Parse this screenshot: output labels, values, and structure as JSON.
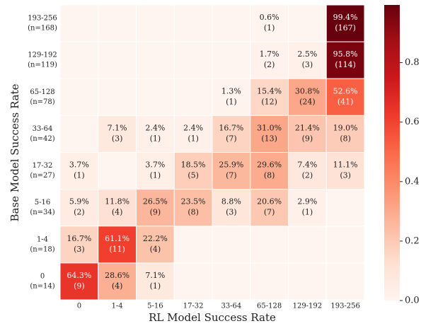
{
  "chart_data": {
    "type": "heatmap",
    "x_label": "RL Model Success Rate",
    "y_label": "Base Model Success Rate",
    "x_categories": [
      "0",
      "1-4",
      "5-16",
      "17-32",
      "33-64",
      "65-128",
      "129-192",
      "193-256"
    ],
    "y_categories": [
      "193-256",
      "129-192",
      "65-128",
      "33-64",
      "17-32",
      "5-16",
      "1-4",
      "0"
    ],
    "y_category_notes": [
      "(n=168)",
      "(n=119)",
      "(n=78)",
      "(n=42)",
      "(n=27)",
      "(n=34)",
      "(n=18)",
      "(n=14)"
    ],
    "values": [
      [
        0,
        0,
        0,
        0,
        0,
        0.006,
        0,
        0.994
      ],
      [
        0,
        0,
        0,
        0,
        0,
        0.017,
        0.025,
        0.958
      ],
      [
        0,
        0,
        0,
        0,
        0.013,
        0.154,
        0.308,
        0.526
      ],
      [
        0,
        0.071,
        0.024,
        0.024,
        0.167,
        0.31,
        0.214,
        0.19
      ],
      [
        0.037,
        0,
        0.037,
        0.185,
        0.259,
        0.296,
        0.074,
        0.111
      ],
      [
        0.059,
        0.118,
        0.265,
        0.235,
        0.088,
        0.206,
        0.029,
        0
      ],
      [
        0.167,
        0.611,
        0.222,
        0,
        0,
        0,
        0,
        0
      ],
      [
        0.643,
        0.286,
        0.071,
        0,
        0,
        0,
        0,
        0
      ]
    ],
    "value_labels": [
      [
        null,
        null,
        null,
        null,
        null,
        "0.6%",
        null,
        "99.4%"
      ],
      [
        null,
        null,
        null,
        null,
        null,
        "1.7%",
        "2.5%",
        "95.8%"
      ],
      [
        null,
        null,
        null,
        null,
        "1.3%",
        "15.4%",
        "30.8%",
        "52.6%"
      ],
      [
        null,
        "7.1%",
        "2.4%",
        "2.4%",
        "16.7%",
        "31.0%",
        "21.4%",
        "19.0%"
      ],
      [
        "3.7%",
        null,
        "3.7%",
        "18.5%",
        "25.9%",
        "29.6%",
        "7.4%",
        "11.1%"
      ],
      [
        "5.9%",
        "11.8%",
        "26.5%",
        "23.5%",
        "8.8%",
        "20.6%",
        "2.9%",
        null
      ],
      [
        "16.7%",
        "61.1%",
        "22.2%",
        null,
        null,
        null,
        null,
        null
      ],
      [
        "64.3%",
        "28.6%",
        "7.1%",
        null,
        null,
        null,
        null,
        null
      ]
    ],
    "counts": [
      [
        null,
        null,
        null,
        null,
        null,
        1,
        null,
        167
      ],
      [
        null,
        null,
        null,
        null,
        null,
        2,
        3,
        114
      ],
      [
        null,
        null,
        null,
        null,
        1,
        12,
        24,
        41
      ],
      [
        null,
        3,
        1,
        1,
        7,
        13,
        9,
        8
      ],
      [
        1,
        null,
        1,
        5,
        7,
        8,
        2,
        3
      ],
      [
        2,
        4,
        9,
        8,
        3,
        7,
        1,
        null
      ],
      [
        3,
        11,
        4,
        null,
        null,
        null,
        null,
        null
      ],
      [
        9,
        4,
        1,
        null,
        null,
        null,
        null,
        null
      ]
    ],
    "count_labels": [
      [
        null,
        null,
        null,
        null,
        null,
        "(1)",
        null,
        "(167)"
      ],
      [
        null,
        null,
        null,
        null,
        null,
        "(2)",
        "(3)",
        "(114)"
      ],
      [
        null,
        null,
        null,
        null,
        "(1)",
        "(12)",
        "(24)",
        "(41)"
      ],
      [
        null,
        "(3)",
        "(1)",
        "(1)",
        "(7)",
        "(13)",
        "(9)",
        "(8)"
      ],
      [
        "(1)",
        null,
        "(1)",
        "(5)",
        "(7)",
        "(8)",
        "(2)",
        "(3)"
      ],
      [
        "(2)",
        "(4)",
        "(9)",
        "(8)",
        "(3)",
        "(7)",
        "(1)",
        null
      ],
      [
        "(3)",
        "(11)",
        "(4)",
        null,
        null,
        null,
        null,
        null
      ],
      [
        "(9)",
        "(4)",
        "(1)",
        null,
        null,
        null,
        null,
        null
      ]
    ],
    "clim": [
      0,
      0.994
    ],
    "cticks": [
      {
        "value": 0,
        "label": "0.0"
      },
      {
        "value": 0.2,
        "label": "0.2"
      },
      {
        "value": 0.4,
        "label": "0.4"
      },
      {
        "value": 0.6,
        "label": "0.6"
      },
      {
        "value": 0.8,
        "label": "0.8"
      }
    ],
    "colors": [
      "#fff5f0",
      "#fee0d2",
      "#fcbba1",
      "#fc9272",
      "#fb6a4a",
      "#ef3b2c",
      "#cb181d",
      "#a50f15",
      "#67000d"
    ]
  }
}
